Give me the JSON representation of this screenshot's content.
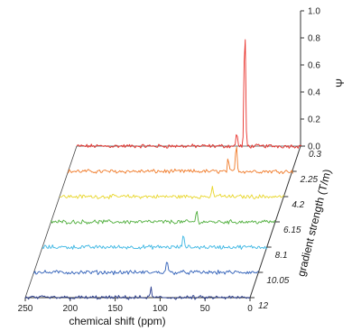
{
  "chart_data": {
    "type": "line",
    "subtype": "3d-waterfall",
    "title": "",
    "xlabel": "chemical shift (ppm)",
    "zlabel": "gradient strength (T/m)",
    "ylabel": "Ψ",
    "x_ticks": [
      250,
      200,
      150,
      100,
      50,
      0
    ],
    "xlim": [
      250,
      0
    ],
    "y_ticks": [
      "0.0",
      "0.2",
      "0.4",
      "0.6",
      "0.8",
      "1.0"
    ],
    "ylim": [
      0,
      1.0
    ],
    "z_ticks": [
      "0.3",
      "2.25",
      "4.2",
      "6.15",
      "8.1",
      "10.05",
      "12"
    ],
    "series": [
      {
        "gradient": 0.3,
        "color": "#e8302a",
        "noise": 0.012,
        "peaks": [
          {
            "ppm": 72,
            "height": 0.12,
            "width": 1.0
          },
          {
            "ppm": 63,
            "height": 0.92,
            "width": 1.2
          }
        ]
      },
      {
        "gradient": 2.25,
        "color": "#f07a28",
        "noise": 0.012,
        "peaks": [
          {
            "ppm": 72,
            "height": 0.1,
            "width": 1.0
          },
          {
            "ppm": 63,
            "height": 0.22,
            "width": 1.2
          }
        ]
      },
      {
        "gradient": 4.2,
        "color": "#e8d62a",
        "noise": 0.012,
        "peaks": [
          {
            "ppm": 80,
            "height": 0.06,
            "width": 1.2
          },
          {
            "ppm": 72,
            "height": 0.03,
            "width": 1.0
          }
        ]
      },
      {
        "gradient": 6.15,
        "color": "#4fae3c",
        "noise": 0.012,
        "peaks": [
          {
            "ppm": 88,
            "height": 0.08,
            "width": 1.2
          }
        ]
      },
      {
        "gradient": 8.1,
        "color": "#3bb6e3",
        "noise": 0.012,
        "peaks": [
          {
            "ppm": 93,
            "height": 0.1,
            "width": 1.2
          }
        ]
      },
      {
        "gradient": 10.05,
        "color": "#2f5fb8",
        "noise": 0.012,
        "peaks": [
          {
            "ppm": 102,
            "height": 0.1,
            "width": 1.2
          }
        ]
      },
      {
        "gradient": 12,
        "color": "#2a3d8f",
        "noise": 0.012,
        "peaks": [
          {
            "ppm": 110,
            "height": 0.07,
            "width": 1.2
          }
        ]
      }
    ]
  }
}
